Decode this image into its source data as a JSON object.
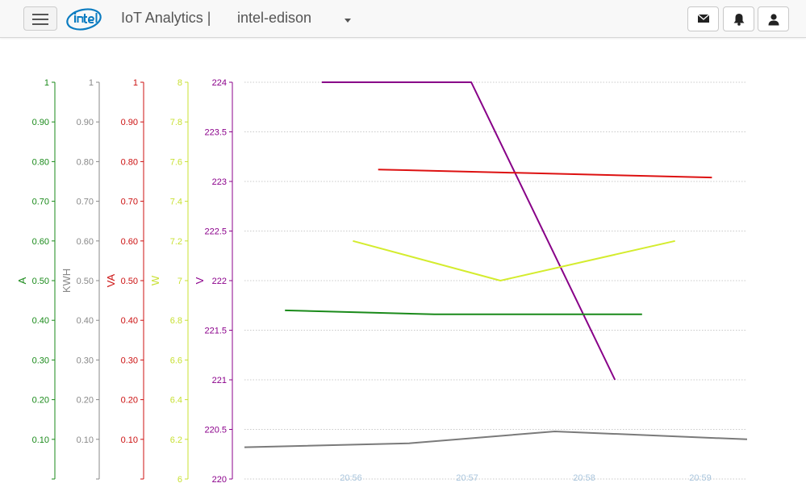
{
  "header": {
    "brand": "IoT Analytics |",
    "device": "intel-edison",
    "buttons": [
      {
        "name": "mail-button",
        "icon": "envelope-icon"
      },
      {
        "name": "alerts-button",
        "icon": "bell-icon"
      },
      {
        "name": "user-button",
        "icon": "user-icon"
      }
    ]
  },
  "chart_data": {
    "type": "line",
    "x_ticks": [
      "20:56",
      "20:57",
      "20:58",
      "20:59"
    ],
    "axes": [
      {
        "label": "A",
        "color": "#1a8a1a",
        "min": 0,
        "max": 1,
        "ticks": [
          "",
          "0.10",
          "0.20",
          "0.30",
          "0.40",
          "0.50",
          "0.60",
          "0.70",
          "0.80",
          "0.90",
          "1"
        ]
      },
      {
        "label": "KWH",
        "color": "#888888",
        "min": 0,
        "max": 1,
        "ticks": [
          "",
          "0.10",
          "0.20",
          "0.30",
          "0.40",
          "0.50",
          "0.60",
          "0.70",
          "0.80",
          "0.90",
          "1"
        ]
      },
      {
        "label": "VA",
        "color": "#cc1111",
        "min": 0,
        "max": 1,
        "ticks": [
          "",
          "0.10",
          "0.20",
          "0.30",
          "0.40",
          "0.50",
          "0.60",
          "0.70",
          "0.80",
          "0.90",
          "1"
        ]
      },
      {
        "label": "W",
        "color": "#c8e032",
        "min": 6,
        "max": 8,
        "ticks": [
          "6",
          "6.2",
          "6.4",
          "6.6",
          "6.8",
          "7",
          "7.2",
          "7.4",
          "7.6",
          "7.8",
          "8"
        ]
      },
      {
        "label": "V",
        "color": "#8b008b",
        "min": 220,
        "max": 224,
        "ticks": [
          "220",
          "220.5",
          "221",
          "221.5",
          "222",
          "222.5",
          "223",
          "223.5",
          "224"
        ]
      }
    ],
    "series": [
      {
        "axis": 4,
        "color": "#880088",
        "points": [
          [
            "20:55:45",
            224
          ],
          [
            "20:57:02",
            224
          ],
          [
            "20:58:16",
            221
          ]
        ]
      },
      {
        "axis": 2,
        "color": "#dd1111",
        "points": [
          [
            "20:56:14",
            0.78
          ],
          [
            "20:59:06",
            0.76
          ]
        ]
      },
      {
        "axis": 3,
        "color": "#d4ec2e",
        "points": [
          [
            "20:56:01",
            7.2
          ],
          [
            "20:57:17",
            7
          ],
          [
            "20:58:47",
            7.2
          ]
        ]
      },
      {
        "axis": 0,
        "color": "#1a8a1a",
        "points": [
          [
            "20:55:26",
            0.425
          ],
          [
            "20:56:43",
            0.415
          ],
          [
            "20:58:30",
            0.415
          ]
        ]
      },
      {
        "axis": 1,
        "color": "#7a7a7a",
        "points": [
          [
            "20:55:01",
            0.08
          ],
          [
            "20:56:30",
            0.09
          ],
          [
            "20:57:45",
            0.12
          ],
          [
            "20:59:25",
            0.1
          ]
        ]
      }
    ],
    "grid": true
  }
}
